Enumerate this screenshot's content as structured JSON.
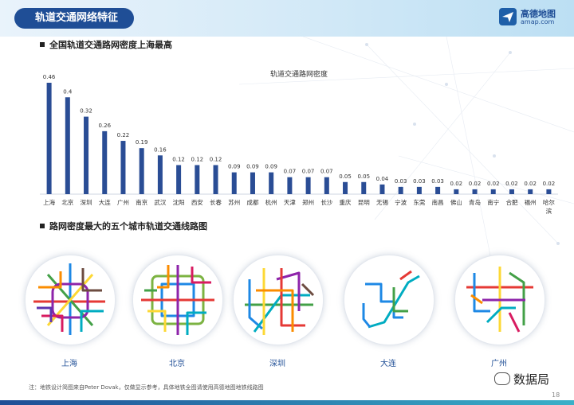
{
  "header": {
    "title": "轨道交通网络特征"
  },
  "logo": {
    "name": "高德地图",
    "url": "amap.com"
  },
  "section1": {
    "title": "全国轨道交通路网密度上海最高"
  },
  "section2": {
    "title": "路网密度最大的五个城市轨道交通线路图"
  },
  "chart_data": {
    "type": "bar",
    "title": "轨道交通路网密度",
    "xlabel": "",
    "ylabel": "",
    "categories": [
      "上海",
      "北京",
      "深圳",
      "大连",
      "广州",
      "南京",
      "武汉",
      "沈阳",
      "西安",
      "长春",
      "苏州",
      "成都",
      "杭州",
      "天津",
      "郑州",
      "长沙",
      "重庆",
      "昆明",
      "无锡",
      "宁波",
      "东莞",
      "南昌",
      "佛山",
      "青岛",
      "南宁",
      "合肥",
      "福州",
      "哈尔滨"
    ],
    "values": [
      0.46,
      0.4,
      0.32,
      0.26,
      0.22,
      0.19,
      0.16,
      0.12,
      0.12,
      0.12,
      0.09,
      0.09,
      0.09,
      0.07,
      0.07,
      0.07,
      0.05,
      0.05,
      0.04,
      0.03,
      0.03,
      0.03,
      0.02,
      0.02,
      0.02,
      0.02,
      0.02,
      0.02
    ],
    "ylim": [
      0,
      0.5
    ],
    "grid": false,
    "bar_color": "#2a4d95"
  },
  "cities": [
    {
      "name": "上海"
    },
    {
      "name": "北京"
    },
    {
      "name": "深圳"
    },
    {
      "name": "大连"
    },
    {
      "name": "广州"
    }
  ],
  "footer": {
    "note": "注：地铁设计简图来自Peter Dovak，仅做显示参考，具体地铁全图请使用高德地图地铁线路图",
    "page": "18"
  },
  "watermark": {
    "text": "数据局"
  }
}
